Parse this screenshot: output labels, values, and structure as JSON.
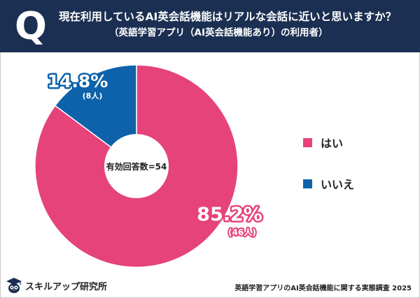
{
  "header": {
    "q_mark": "Q",
    "title": "現在利用しているAI英会話機能はリアルな会話に近いと思いますか？",
    "subtitle": "（英語学習アプリ（AI英会話機能あり）の利用者）"
  },
  "chart_data": {
    "type": "pie",
    "title": "現在利用しているAI英会話機能はリアルな会話に近いと思いますか？",
    "center_label": "有効回答数=54",
    "total": 54,
    "slices": [
      {
        "name": "はい",
        "percent": 85.2,
        "percent_label": "85.2%",
        "count": 46,
        "count_label": "(46人)",
        "color": "#e6437a"
      },
      {
        "name": "いいえ",
        "percent": 14.8,
        "percent_label": "14.8%",
        "count": 8,
        "count_label": "(8人)",
        "color": "#0d62aa"
      }
    ],
    "legend": [
      "はい",
      "いいえ"
    ],
    "legend_position": "right"
  },
  "footer": {
    "brand": "スキルアップ研究所",
    "source": "英語学習アプリのAI英会話機能に関する実態調査 2025"
  },
  "colors": {
    "header_bg": "#1b2f52",
    "yes": "#e6437a",
    "no": "#0d62aa"
  }
}
